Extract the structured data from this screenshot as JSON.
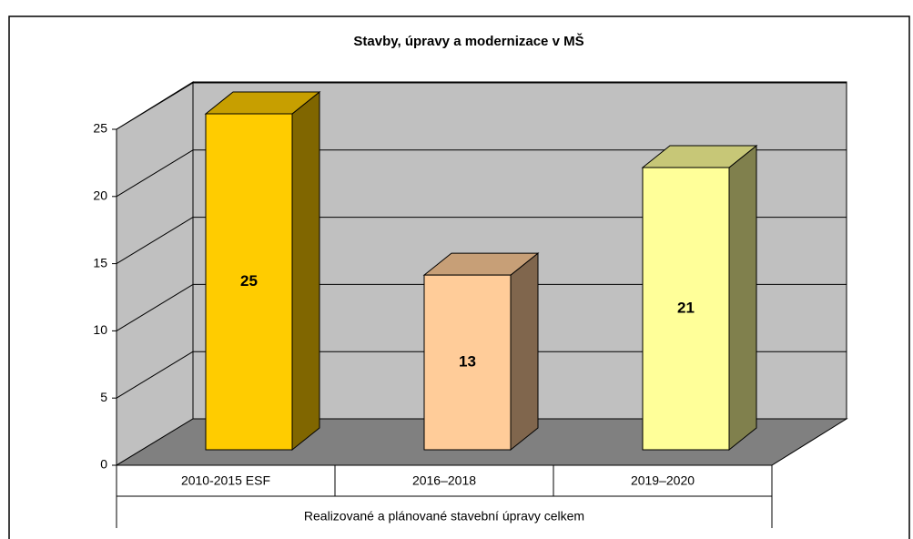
{
  "chart_data": {
    "type": "bar3d",
    "title": "Stavby, úpravy a modernizace v MŠ",
    "categories": [
      "2010-2015 ESF",
      "2016–2018",
      "2019–2020"
    ],
    "values": [
      25,
      13,
      21
    ],
    "colors": [
      "#FFCC00",
      "#FFCC99",
      "#FFFF99"
    ],
    "xlabel": "Realizované a plánované stavební úpravy celkem",
    "ylim": [
      0,
      25
    ],
    "yticks": [
      0,
      5,
      10,
      15,
      20,
      25
    ],
    "grid": true
  }
}
